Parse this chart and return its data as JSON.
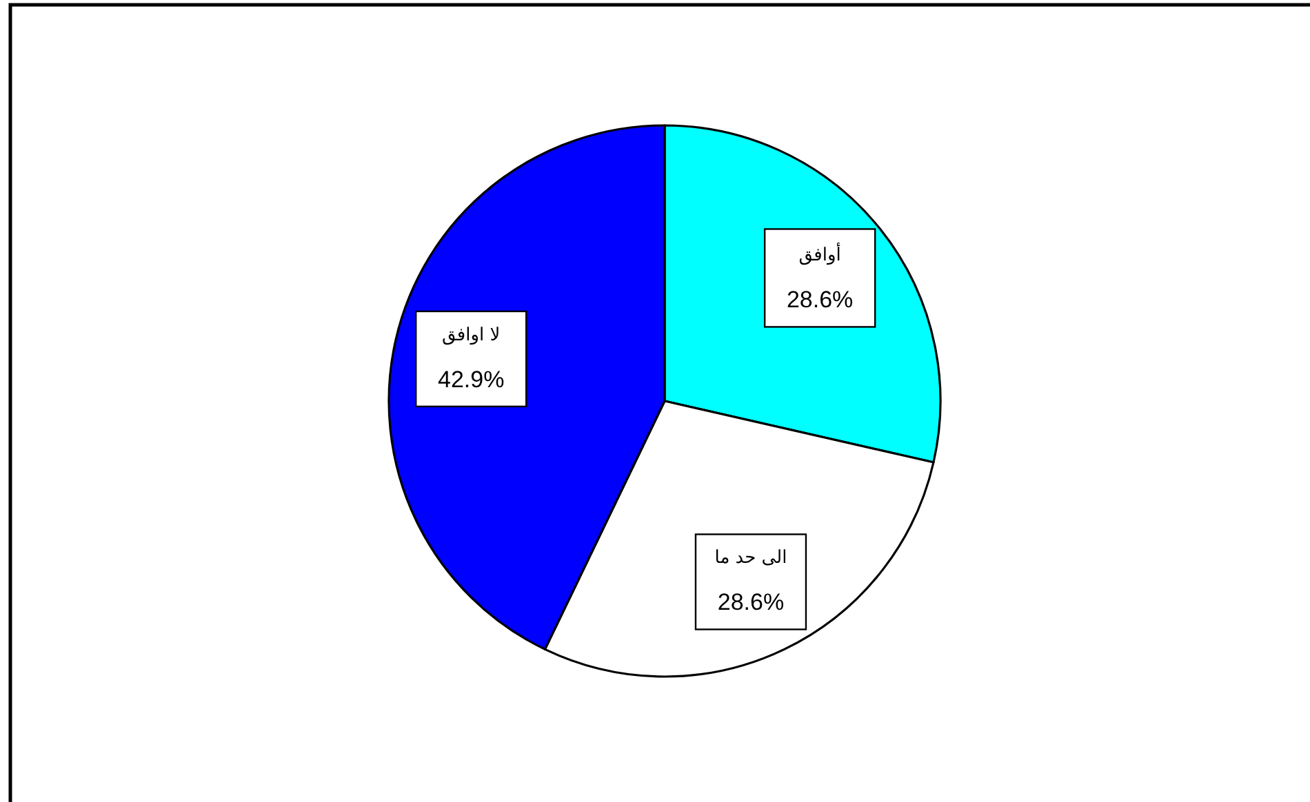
{
  "chart_data": {
    "type": "pie",
    "categories": [
      "أوافق",
      "الى حد ما",
      "لا اوافق"
    ],
    "values": [
      28.6,
      28.6,
      42.9
    ],
    "colors": [
      "#00ffff",
      "#ffffff",
      "#0000ff"
    ],
    "value_labels": [
      "28.6%",
      "28.6%",
      "42.9%"
    ]
  }
}
